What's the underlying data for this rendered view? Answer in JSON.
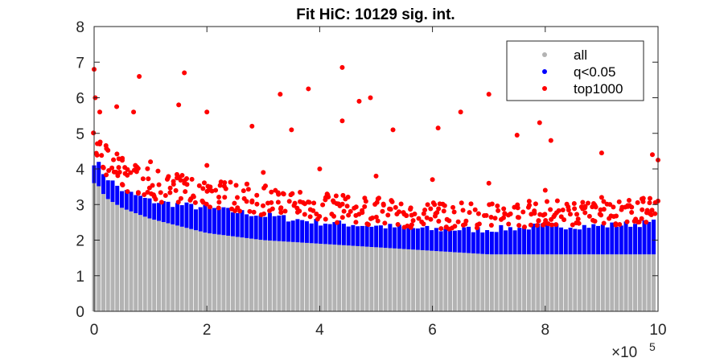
{
  "chart_data": {
    "type": "scatter",
    "title": "Fit HiC: 10129 sig. int.",
    "xlabel": "",
    "ylabel": "",
    "x_exponent_label": "×10",
    "x_exponent_power": "5",
    "xlim": [
      0,
      10
    ],
    "ylim": [
      0,
      8
    ],
    "x_ticks": [
      0,
      2,
      4,
      6,
      8,
      10
    ],
    "x_tick_labels": [
      "0",
      "2",
      "4",
      "6",
      "8",
      "10"
    ],
    "y_ticks": [
      0,
      1,
      2,
      3,
      4,
      5,
      6,
      7,
      8
    ],
    "y_tick_labels": [
      "0",
      "1",
      "2",
      "3",
      "4",
      "5",
      "6",
      "7",
      "8"
    ],
    "grid": false,
    "legend_position": "top-right",
    "series": [
      {
        "name": "all",
        "color": "#b3b3b3",
        "description_points": "dense columns from 0 up to the significance threshold",
        "points": [
          [
            0.05,
            3.6
          ],
          [
            0.2,
            3.2
          ],
          [
            0.5,
            2.9
          ],
          [
            1,
            2.6
          ],
          [
            1.5,
            2.4
          ],
          [
            2,
            2.2
          ],
          [
            3,
            2.0
          ],
          [
            4,
            1.9
          ],
          [
            5,
            1.8
          ],
          [
            6,
            1.7
          ],
          [
            7,
            1.6
          ],
          [
            8,
            1.6
          ],
          [
            9,
            1.6
          ],
          [
            10,
            1.6
          ]
        ]
      },
      {
        "name": "q<0.05",
        "color": "#0000ff",
        "points": [
          [
            0.05,
            4.2
          ],
          [
            0.2,
            3.8
          ],
          [
            0.5,
            3.4
          ],
          [
            1,
            3.1
          ],
          [
            1.5,
            3.0
          ],
          [
            2,
            2.9
          ],
          [
            2.5,
            2.8
          ],
          [
            3,
            2.7
          ],
          [
            4,
            2.5
          ],
          [
            5,
            2.4
          ],
          [
            6,
            2.3
          ],
          [
            7,
            2.3
          ],
          [
            8,
            2.4
          ],
          [
            9,
            2.4
          ],
          [
            10,
            2.5
          ]
        ]
      },
      {
        "name": "top1000",
        "color": "#ff0000",
        "points": [
          [
            0.0,
            6.8
          ],
          [
            0.02,
            6.0
          ],
          [
            0.1,
            5.6
          ],
          [
            0.4,
            5.75
          ],
          [
            0.7,
            5.6
          ],
          [
            0.8,
            6.6
          ],
          [
            1.5,
            5.8
          ],
          [
            1.6,
            6.7
          ],
          [
            2.0,
            5.6
          ],
          [
            2.8,
            5.2
          ],
          [
            3.3,
            6.1
          ],
          [
            3.5,
            5.1
          ],
          [
            3.8,
            6.25
          ],
          [
            4.4,
            6.85
          ],
          [
            4.4,
            5.35
          ],
          [
            4.7,
            5.9
          ],
          [
            4.9,
            6.0
          ],
          [
            5.3,
            5.1
          ],
          [
            6.1,
            5.15
          ],
          [
            6.5,
            5.6
          ],
          [
            7.0,
            6.1
          ],
          [
            7.5,
            4.95
          ],
          [
            7.9,
            5.3
          ],
          [
            8.1,
            4.8
          ],
          [
            9.0,
            4.45
          ],
          [
            9.9,
            4.4
          ],
          [
            10.0,
            4.25
          ],
          [
            0.1,
            4.7
          ],
          [
            0.5,
            4.3
          ],
          [
            1.0,
            4.2
          ],
          [
            2.0,
            4.1
          ],
          [
            3.0,
            3.9
          ],
          [
            4.0,
            4.0
          ],
          [
            5.0,
            3.8
          ],
          [
            6.0,
            3.7
          ],
          [
            7.0,
            3.6
          ],
          [
            8.0,
            3.4
          ],
          [
            9.0,
            3.2
          ],
          [
            10.0,
            3.1
          ]
        ]
      }
    ]
  }
}
